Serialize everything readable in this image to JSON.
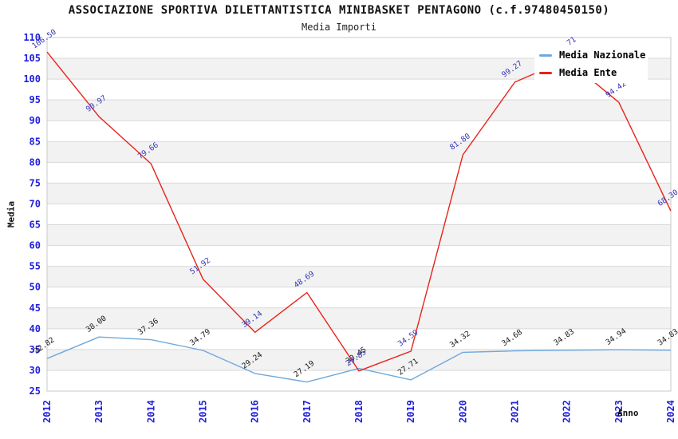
{
  "header": {
    "title": "ASSOCIAZIONE SPORTIVA DILETTANTISTICA MINIBASKET PENTAGONO (c.f.97480450150)",
    "subtitle": "Media Importi"
  },
  "legend": {
    "items": [
      {
        "label": "Media Nazionale",
        "color": "#6fa8dc"
      },
      {
        "label": "Media Ente",
        "color": "#e8231a"
      }
    ]
  },
  "chart_data": {
    "type": "line",
    "title": "ASSOCIAZIONE SPORTIVA DILETTANTISTICA MINIBASKET PENTAGONO (c.f.97480450150)",
    "subtitle": "Media Importi",
    "xlabel": "Anno",
    "ylabel": "Media",
    "categories": [
      "2012",
      "2013",
      "2014",
      "2015",
      "2016",
      "2017",
      "2018",
      "2019",
      "2020",
      "2021",
      "2022",
      "2023",
      "2024"
    ],
    "series": [
      {
        "name": "Media Nazionale",
        "color": "#6fa8dc",
        "label_color": "#1a1a1a",
        "values": [
          32.82,
          38.0,
          37.36,
          34.79,
          29.24,
          27.19,
          30.45,
          27.71,
          34.32,
          34.68,
          34.83,
          34.94,
          34.83
        ],
        "labels": [
          "32.82",
          "38.00",
          "37.36",
          "34.79",
          "29.24",
          "27.19",
          "30.45",
          "27.71",
          "34.32",
          "34.68",
          "34.83",
          "34.94",
          "34.83"
        ]
      },
      {
        "name": "Media Ente",
        "color": "#e8231a",
        "label_color": "#3535b8",
        "values": [
          106.5,
          90.97,
          79.66,
          51.92,
          39.14,
          48.69,
          29.85,
          34.59,
          81.8,
          99.27,
          104.71,
          94.42,
          68.3
        ],
        "labels": [
          "106.50",
          "90.97",
          "79.66",
          "51.92",
          "39.14",
          "48.69",
          "29.85",
          "34.59",
          "81.80",
          "99.27",
          "104.71",
          "94.42",
          "68.30"
        ]
      }
    ],
    "ylim": [
      25,
      110
    ],
    "yticks": [
      25,
      30,
      35,
      40,
      45,
      50,
      55,
      60,
      65,
      70,
      75,
      80,
      85,
      90,
      95,
      100,
      105,
      110
    ],
    "grid": true,
    "legend_position": "top-right",
    "tick_label_color": "#2020dd",
    "grid_color": "#d9d9d9",
    "band_fill": "#f2f2f2",
    "border_color": "#c9c9c9",
    "data_label_rotation_deg": -35,
    "note": "2022 Media Ente label partially hidden behind legend"
  }
}
